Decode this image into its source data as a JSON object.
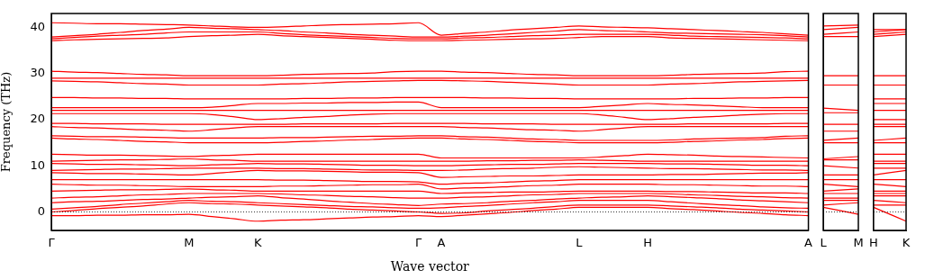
{
  "chart_data": [
    {
      "type": "line",
      "xlabel": "Wave vector",
      "ylabel": "Frequency (THz)",
      "legend": false,
      "marker": "none",
      "line_style": "solid",
      "categories": [
        "Γ",
        null,
        null,
        null,
        null,
        null,
        "M",
        null,
        null,
        "K",
        null,
        null,
        null,
        null,
        null,
        null,
        "Γ",
        "A",
        null,
        null,
        null,
        null,
        null,
        "L",
        null,
        null,
        "H",
        null,
        null,
        null,
        null,
        null,
        null,
        "A"
      ],
      "ylim": [
        -4,
        43
      ],
      "yticks": [
        0,
        10,
        20,
        30,
        40
      ],
      "ref_lines": [
        {
          "axis": "y",
          "value": 0,
          "color": "#000000",
          "line_style": "dotted"
        }
      ],
      "series": [
        {
          "color": "#ff0000",
          "values": [
            41,
            40.9,
            40.8,
            40.8,
            40.7,
            40.6,
            40.5,
            40.3,
            40.1,
            40,
            40.1,
            40.3,
            40.5,
            40.6,
            40.7,
            40.8,
            41,
            38.3,
            38.7,
            39,
            39.4,
            39.7,
            40,
            40.3,
            40.1,
            40,
            39.9,
            39.7,
            39.5,
            39.3,
            39.1,
            38.9,
            38.6,
            38.3
          ]
        },
        {
          "color": "#ff0000",
          "values": [
            37.9,
            38.2,
            38.5,
            38.9,
            39.3,
            39.6,
            40,
            39.8,
            39.7,
            39.5,
            39.3,
            39,
            38.8,
            38.5,
            38.3,
            38.1,
            37.9,
            37.9,
            38.1,
            38.3,
            38.6,
            38.9,
            39.2,
            39.5,
            39.3,
            39.2,
            39,
            38.8,
            38.7,
            38.6,
            38.5,
            38.4,
            38.2,
            37.9
          ]
        },
        {
          "color": "#ff0000",
          "values": [
            37.5,
            37.8,
            38.1,
            38.3,
            38.5,
            38.8,
            39,
            39,
            39,
            39,
            38.7,
            38.4,
            38.2,
            38,
            37.8,
            37.6,
            37.5,
            37.5,
            37.7,
            37.8,
            38,
            38.2,
            38.3,
            38.5,
            38.5,
            38.5,
            38.5,
            38.3,
            38.1,
            38,
            37.9,
            37.8,
            37.7,
            37.5
          ]
        },
        {
          "color": "#ff0000",
          "values": [
            37.1,
            37.3,
            37.4,
            37.5,
            37.6,
            37.7,
            38,
            38.2,
            38.3,
            38.5,
            38.2,
            38,
            37.8,
            37.6,
            37.4,
            37.2,
            37.1,
            37.1,
            37.2,
            37.3,
            37.4,
            37.5,
            37.6,
            37.8,
            38,
            38,
            38,
            37.7,
            37.6,
            37.5,
            37.4,
            37.3,
            37.2,
            37.1
          ]
        },
        {
          "color": "#ff0000",
          "values": [
            30.5,
            30.3,
            30.2,
            30,
            29.8,
            29.7,
            29.5,
            29.5,
            29.5,
            29.5,
            29.6,
            29.8,
            29.9,
            30,
            30.1,
            30.4,
            30.5,
            30.5,
            30.3,
            30.2,
            30,
            29.8,
            29.7,
            29.5,
            29.5,
            29.5,
            29.5,
            29.6,
            29.8,
            29.9,
            30,
            30.1,
            30.4,
            30.5
          ]
        },
        {
          "color": "#ff0000",
          "values": [
            29,
            29,
            29,
            29,
            29,
            29,
            29,
            29,
            29,
            29,
            29,
            29,
            29,
            29,
            29,
            29,
            29,
            29,
            29,
            29,
            29,
            29,
            29,
            29,
            29,
            29,
            29,
            29,
            29,
            29,
            29,
            29,
            29,
            29
          ]
        },
        {
          "color": "#ff0000",
          "values": [
            28.4,
            28.3,
            28.2,
            28,
            27.8,
            27.7,
            27.5,
            27.5,
            27.5,
            27.5,
            27.7,
            27.8,
            28,
            28.2,
            28.3,
            28.4,
            28.5,
            28.5,
            28.4,
            28.3,
            28.1,
            27.9,
            27.7,
            27.5,
            27.5,
            27.5,
            27.5,
            27.7,
            27.8,
            28,
            28.2,
            28.3,
            28.4,
            28.5
          ]
        },
        {
          "color": "#ff0000",
          "values": [
            24.8,
            24.8,
            24.7,
            24.7,
            24.6,
            24.6,
            24.5,
            24.5,
            24.5,
            24.5,
            24.5,
            24.6,
            24.6,
            24.7,
            24.7,
            24.8,
            24.8,
            24.8,
            24.8,
            24.7,
            24.7,
            24.6,
            24.6,
            24.5,
            24.5,
            24.5,
            24.5,
            24.5,
            24.6,
            24.6,
            24.7,
            24.7,
            24.8,
            24.8
          ]
        },
        {
          "color": "#ff0000",
          "values": [
            22.6,
            22.6,
            22.6,
            22.6,
            22.6,
            22.6,
            22.6,
            22.7,
            23.1,
            23.5,
            23.5,
            23.6,
            23.6,
            23.7,
            23.7,
            23.8,
            23.8,
            22.6,
            22.6,
            22.6,
            22.6,
            22.6,
            22.6,
            22.6,
            22.9,
            23.2,
            23.5,
            23.3,
            23.2,
            23,
            22.8,
            22.6,
            22.6,
            22.6
          ]
        },
        {
          "color": "#ff0000",
          "values": [
            22,
            22,
            22,
            22,
            22,
            22,
            22,
            22,
            22,
            22,
            22,
            22,
            22,
            22,
            22,
            22,
            22,
            22,
            22,
            22,
            22,
            22,
            22,
            22,
            22,
            22,
            22,
            22,
            22,
            22,
            22,
            22,
            22,
            22
          ]
        },
        {
          "color": "#ff0000",
          "values": [
            21.3,
            21.3,
            21.3,
            21.3,
            21.3,
            21.3,
            21.3,
            21.1,
            20.6,
            20,
            20.2,
            20.5,
            20.7,
            21,
            21.2,
            21.3,
            21.3,
            21.3,
            21.3,
            21.3,
            21.3,
            21.3,
            21.3,
            21.3,
            21,
            20.5,
            20,
            20.2,
            20.5,
            20.7,
            21,
            21.2,
            21.3,
            21.3
          ]
        },
        {
          "color": "#ff0000",
          "values": [
            19.2,
            19.2,
            19.1,
            19.1,
            19.1,
            19,
            19,
            19,
            19,
            19,
            19,
            19.1,
            19.1,
            19.1,
            19.1,
            19.2,
            19.2,
            19.2,
            19.2,
            19.1,
            19.1,
            19.1,
            19,
            19,
            19,
            19,
            19,
            19,
            19.1,
            19.1,
            19.1,
            19.1,
            19.2,
            19.2
          ]
        },
        {
          "color": "#ff0000",
          "values": [
            18.5,
            18.3,
            18.2,
            18,
            17.8,
            17.7,
            17.5,
            17.8,
            18.2,
            18.5,
            18.5,
            18.5,
            18.5,
            18.5,
            18.5,
            18.5,
            18.5,
            18.5,
            18.3,
            18.2,
            18,
            17.8,
            17.7,
            17.5,
            17.8,
            18.2,
            18.5,
            18.5,
            18.5,
            18.5,
            18.5,
            18.5,
            18.5,
            18.5
          ]
        },
        {
          "color": "#ff0000",
          "values": [
            16.5,
            16.4,
            16.3,
            16.3,
            16.2,
            16.1,
            16,
            16,
            16,
            16,
            16.1,
            16.1,
            16.2,
            16.3,
            16.4,
            16.4,
            16.5,
            16.5,
            16.3,
            16.2,
            16,
            15.8,
            15.7,
            15.5,
            15.5,
            15.5,
            15.5,
            15.6,
            15.8,
            15.9,
            16,
            16.1,
            16.4,
            16.5
          ]
        },
        {
          "color": "#ff0000",
          "values": [
            16,
            15.8,
            15.7,
            15.5,
            15.3,
            15.2,
            15,
            15,
            15,
            15,
            15.1,
            15.3,
            15.4,
            15.6,
            15.7,
            15.9,
            16,
            16,
            15.8,
            15.7,
            15.5,
            15.3,
            15.2,
            15,
            15,
            15,
            15,
            15.1,
            15.3,
            15.4,
            15.6,
            15.7,
            15.9,
            16
          ]
        },
        {
          "color": "#ff0000",
          "values": [
            12.5,
            12.4,
            12.3,
            12.3,
            12.2,
            12.1,
            12,
            12.2,
            12.3,
            12.5,
            12.5,
            12.5,
            12.5,
            12.5,
            12.5,
            12.5,
            12.5,
            11.7,
            11.7,
            11.7,
            11.7,
            11.7,
            11.7,
            11.7,
            11.9,
            12.2,
            12.5,
            12.4,
            12.3,
            12.1,
            12,
            11.9,
            11.8,
            11.7
          ]
        },
        {
          "color": "#ff0000",
          "values": [
            11,
            11.1,
            11.2,
            11.3,
            11.3,
            11.4,
            11.5,
            11.3,
            11.2,
            11,
            11,
            11,
            11,
            11,
            11,
            11,
            11,
            11,
            11,
            11.1,
            11.1,
            11.2,
            11.2,
            11.3,
            11.2,
            11.1,
            11,
            11,
            11,
            11,
            11,
            11,
            11,
            11
          ]
        },
        {
          "color": "#ff0000",
          "values": [
            10.5,
            10.4,
            10.3,
            10.3,
            10.2,
            10.1,
            10,
            10.2,
            10.3,
            10.5,
            10.4,
            10.4,
            10.3,
            10.2,
            10.1,
            10.1,
            10,
            10,
            10.1,
            10.2,
            10.3,
            10.3,
            10.4,
            10.5,
            10.5,
            10.5,
            10.5,
            10.4,
            10.4,
            10.3,
            10.2,
            10.1,
            10.1,
            10
          ]
        },
        {
          "color": "#ff0000",
          "values": [
            9,
            9.1,
            9.2,
            9.3,
            9.3,
            9.4,
            9.5,
            9.5,
            9.5,
            9.5,
            9.4,
            9.4,
            9.3,
            9.2,
            9.1,
            9.1,
            9,
            9,
            9.1,
            9.3,
            9.4,
            9.5,
            9.7,
            9.8,
            9.7,
            9.6,
            9.5,
            9.4,
            9.4,
            9.3,
            9.2,
            9.1,
            9.1,
            9
          ]
        },
        {
          "color": "#ff0000",
          "values": [
            8.5,
            8.4,
            8.3,
            8.3,
            8.2,
            8.1,
            8,
            8.3,
            8.7,
            9,
            8.9,
            8.9,
            8.8,
            8.7,
            8.6,
            8.6,
            8.5,
            7.5,
            7.6,
            7.7,
            7.8,
            7.8,
            7.9,
            8,
            8,
            8,
            8,
            8.1,
            8.1,
            8.2,
            8.3,
            8.4,
            8.4,
            8.5
          ]
        },
        {
          "color": "#ff0000",
          "values": [
            7,
            7,
            7,
            7,
            7,
            7,
            7,
            7,
            7,
            7,
            6.9,
            6.9,
            6.8,
            6.7,
            6.6,
            6.6,
            6.5,
            6,
            6.2,
            6.3,
            6.5,
            6.7,
            6.8,
            7,
            7,
            7,
            7,
            7,
            7,
            7,
            7,
            7,
            7,
            7
          ]
        },
        {
          "color": "#ff0000",
          "values": [
            6,
            5.9,
            5.8,
            5.8,
            5.7,
            5.6,
            5.5,
            5.5,
            5.5,
            5.5,
            5.6,
            5.6,
            5.7,
            5.8,
            5.9,
            5.9,
            6,
            5,
            5.2,
            5.3,
            5.5,
            5.7,
            5.8,
            6,
            6,
            6,
            6,
            5.9,
            5.9,
            5.8,
            5.7,
            5.6,
            5.6,
            5.5
          ]
        },
        {
          "color": "#ff0000",
          "values": [
            4.5,
            4.6,
            4.7,
            4.8,
            4.8,
            4.9,
            5,
            4.8,
            4.7,
            4.5,
            4.5,
            4.5,
            4.5,
            4.5,
            4.5,
            4.5,
            4.5,
            4,
            4.1,
            4.2,
            4.3,
            4.3,
            4.4,
            4.5,
            4.5,
            4.5,
            4.5,
            4.4,
            4.4,
            4.3,
            4.2,
            4.1,
            4.1,
            4
          ]
        },
        {
          "color": "#ff0000",
          "values": [
            3,
            3.2,
            3.3,
            3.5,
            3.7,
            3.8,
            4,
            4,
            4,
            4,
            3.9,
            3.7,
            3.6,
            3.4,
            3.3,
            3.1,
            3,
            3,
            3.2,
            3.3,
            3.5,
            3.7,
            3.8,
            4,
            4,
            4,
            4,
            3.9,
            3.7,
            3.6,
            3.4,
            3.3,
            3.1,
            3
          ]
        },
        {
          "color": "#ff0000",
          "values": [
            2,
            2.2,
            2.3,
            2.5,
            2.7,
            2.8,
            3,
            3.2,
            3.3,
            3.5,
            3.1,
            2.8,
            2.4,
            2.1,
            1.8,
            1.6,
            1.4,
            1.7,
            1.8,
            2,
            2.3,
            2.5,
            2.8,
            3,
            3.2,
            3.3,
            3.5,
            3.3,
            3.1,
            2.9,
            2.6,
            2.4,
            2.2,
            2
          ]
        },
        {
          "color": "#ff0000",
          "values": [
            0.6,
            0.9,
            1.2,
            1.6,
            1.9,
            2.2,
            2.5,
            2.3,
            2.2,
            2,
            1.8,
            1.6,
            1.4,
            1.2,
            1.1,
            0.9,
            0.8,
            0.9,
            1.2,
            1.4,
            1.7,
            2,
            2.2,
            2.5,
            2.5,
            2.5,
            2.5,
            2.2,
            1.9,
            1.6,
            1.4,
            1.1,
            0.9,
            0.8
          ]
        },
        {
          "color": "#ff0000",
          "values": [
            0,
            0.3,
            0.7,
            1,
            1.3,
            1.7,
            2,
            1.8,
            1.7,
            1.5,
            1.3,
            1.1,
            0.9,
            0.6,
            0.4,
            0.2,
            0,
            -0.3,
            -0.2,
            0.2,
            0.5,
            0.8,
            1.2,
            1.5,
            1.5,
            1.5,
            1.5,
            1.3,
            1.1,
            0.9,
            0.6,
            0.4,
            0.2,
            0
          ]
        },
        {
          "color": "#ff0000",
          "values": [
            -0.8,
            -0.8,
            -0.7,
            -0.7,
            -0.6,
            -0.6,
            -0.5,
            -1,
            -1.5,
            -2,
            -1.8,
            -1.7,
            -1.5,
            -1.3,
            -1.1,
            -1,
            -0.8,
            -1,
            -0.7,
            -0.4,
            -0.1,
            0.3,
            0.6,
            1,
            1,
            1,
            1,
            0.7,
            0.5,
            0.2,
            -0.1,
            -0.3,
            -0.6,
            -0.8
          ]
        }
      ]
    },
    {
      "type": "line",
      "legend": false,
      "marker": "none",
      "line_style": "solid",
      "tick_labels": "x",
      "categories": [
        "L",
        "M"
      ],
      "ylim": [
        -4,
        43
      ],
      "yticks": [
        0,
        10,
        20,
        30,
        40
      ],
      "ref_lines": [
        {
          "axis": "y",
          "value": 0,
          "color": "#000000",
          "line_style": "dotted"
        }
      ],
      "series": [
        {
          "color": "#ff0000",
          "values": [
            40.3,
            40.5
          ]
        },
        {
          "color": "#ff0000",
          "values": [
            39.5,
            40
          ]
        },
        {
          "color": "#ff0000",
          "values": [
            38.5,
            39
          ]
        },
        {
          "color": "#ff0000",
          "values": [
            38,
            38
          ]
        },
        {
          "color": "#ff0000",
          "values": [
            29.5,
            29.5
          ]
        },
        {
          "color": "#ff0000",
          "values": [
            27.5,
            27.5
          ]
        },
        {
          "color": "#ff0000",
          "values": [
            22.5,
            22
          ]
        },
        {
          "color": "#ff0000",
          "values": [
            21.5,
            21.5
          ]
        },
        {
          "color": "#ff0000",
          "values": [
            19,
            19
          ]
        },
        {
          "color": "#ff0000",
          "values": [
            17.5,
            17.5
          ]
        },
        {
          "color": "#ff0000",
          "values": [
            15.5,
            16
          ]
        },
        {
          "color": "#ff0000",
          "values": [
            15,
            15
          ]
        },
        {
          "color": "#ff0000",
          "values": [
            11.5,
            12
          ]
        },
        {
          "color": "#ff0000",
          "values": [
            11.3,
            11.3
          ]
        },
        {
          "color": "#ff0000",
          "values": [
            10,
            9.5
          ]
        },
        {
          "color": "#ff0000",
          "values": [
            8,
            8
          ]
        },
        {
          "color": "#ff0000",
          "values": [
            7,
            7
          ]
        },
        {
          "color": "#ff0000",
          "values": [
            6,
            5.5
          ]
        },
        {
          "color": "#ff0000",
          "values": [
            4.5,
            5
          ]
        },
        {
          "color": "#ff0000",
          "values": [
            4,
            4
          ]
        },
        {
          "color": "#ff0000",
          "values": [
            3,
            3
          ]
        },
        {
          "color": "#ff0000",
          "values": [
            2.5,
            2.5
          ]
        },
        {
          "color": "#ff0000",
          "values": [
            1.5,
            2
          ]
        },
        {
          "color": "#ff0000",
          "values": [
            1,
            -0.5
          ]
        }
      ]
    },
    {
      "type": "line",
      "legend": false,
      "marker": "none",
      "line_style": "solid",
      "tick_labels": "x",
      "categories": [
        "H",
        "K"
      ],
      "ylim": [
        -4,
        43
      ],
      "yticks": [
        0,
        10,
        20,
        30,
        40
      ],
      "ref_lines": [
        {
          "axis": "y",
          "value": 0,
          "color": "#000000",
          "line_style": "dotted"
        }
      ],
      "series": [
        {
          "color": "#ff0000",
          "values": [
            39.5,
            39.5
          ]
        },
        {
          "color": "#ff0000",
          "values": [
            39,
            39.5
          ]
        },
        {
          "color": "#ff0000",
          "values": [
            38.5,
            39
          ]
        },
        {
          "color": "#ff0000",
          "values": [
            38,
            38.5
          ]
        },
        {
          "color": "#ff0000",
          "values": [
            29.5,
            29.5
          ]
        },
        {
          "color": "#ff0000",
          "values": [
            27.5,
            27.5
          ]
        },
        {
          "color": "#ff0000",
          "values": [
            24.5,
            24.5
          ]
        },
        {
          "color": "#ff0000",
          "values": [
            23.5,
            23.5
          ]
        },
        {
          "color": "#ff0000",
          "values": [
            22,
            22
          ]
        },
        {
          "color": "#ff0000",
          "values": [
            20,
            20
          ]
        },
        {
          "color": "#ff0000",
          "values": [
            19,
            19
          ]
        },
        {
          "color": "#ff0000",
          "values": [
            18.5,
            18.5
          ]
        },
        {
          "color": "#ff0000",
          "values": [
            15.5,
            16
          ]
        },
        {
          "color": "#ff0000",
          "values": [
            15,
            15
          ]
        },
        {
          "color": "#ff0000",
          "values": [
            12.5,
            12.5
          ]
        },
        {
          "color": "#ff0000",
          "values": [
            11,
            11
          ]
        },
        {
          "color": "#ff0000",
          "values": [
            10.5,
            10.5
          ]
        },
        {
          "color": "#ff0000",
          "values": [
            9.5,
            9.5
          ]
        },
        {
          "color": "#ff0000",
          "values": [
            8,
            9
          ]
        },
        {
          "color": "#ff0000",
          "values": [
            7,
            7
          ]
        },
        {
          "color": "#ff0000",
          "values": [
            6,
            5.5
          ]
        },
        {
          "color": "#ff0000",
          "values": [
            4.5,
            4.5
          ]
        },
        {
          "color": "#ff0000",
          "values": [
            4,
            4
          ]
        },
        {
          "color": "#ff0000",
          "values": [
            3.5,
            3.5
          ]
        },
        {
          "color": "#ff0000",
          "values": [
            2.5,
            2
          ]
        },
        {
          "color": "#ff0000",
          "values": [
            1.5,
            1.5
          ]
        },
        {
          "color": "#ff0000",
          "values": [
            1,
            -2
          ]
        }
      ]
    }
  ]
}
